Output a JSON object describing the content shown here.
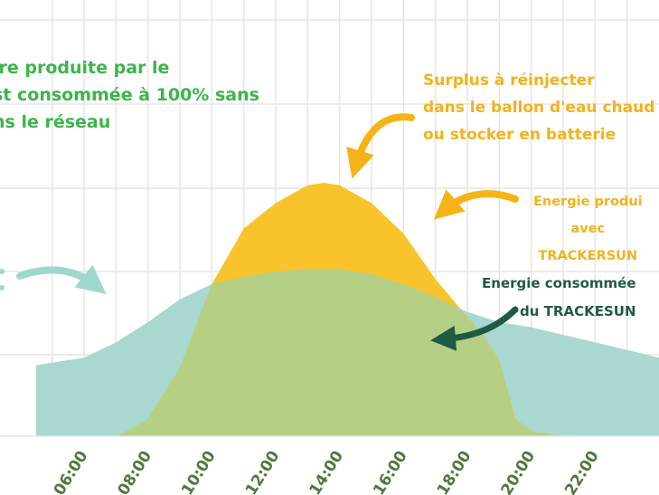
{
  "colors": {
    "produced_fill": "#f9c42b",
    "consumed_fill": "#a8d8cf",
    "overlap_fill": "#b5cf84",
    "grid": "#e6e6e6",
    "axis_label": "#4d7a3a",
    "annot_green": "#3bb54a",
    "annot_orange": "#f2b21c",
    "annot_dark": "#1f5a44",
    "arrow_orange": "#f5b316",
    "arrow_teal": "#9ed7cc",
    "arrow_dark": "#1f5a44"
  },
  "chart_data": {
    "type": "area",
    "x_unit": "hour",
    "x_range": [
      4.5,
      24.0
    ],
    "y_range": [
      0,
      1
    ],
    "grid": true,
    "tick_labels": [
      "06:00",
      "08:00",
      "10:00",
      "12:00",
      "14:00",
      "16:00",
      "18:00",
      "20:00",
      "22:00"
    ],
    "tick_values": [
      6,
      8,
      10,
      12,
      14,
      16,
      18,
      20,
      22
    ],
    "series": [
      {
        "key": "consumed",
        "x": [
          4.5,
          5.0,
          6.0,
          7.0,
          8.0,
          9.0,
          10.0,
          11.0,
          12.0,
          13.0,
          14.0,
          15.0,
          16.0,
          17.0,
          18.0,
          19.0,
          20.0,
          21.0,
          22.0,
          23.0,
          24.0
        ],
        "y": [
          0.28,
          0.29,
          0.31,
          0.37,
          0.45,
          0.54,
          0.6,
          0.63,
          0.65,
          0.66,
          0.66,
          0.64,
          0.6,
          0.55,
          0.49,
          0.45,
          0.43,
          0.4,
          0.37,
          0.34,
          0.31
        ]
      },
      {
        "key": "produced",
        "x": [
          7.0,
          7.5,
          8.0,
          9.0,
          10.0,
          11.0,
          12.0,
          13.0,
          13.5,
          14.0,
          15.0,
          16.0,
          17.0,
          18.0,
          18.5,
          19.0,
          19.5,
          20.0,
          21.0
        ],
        "y": [
          0.0,
          0.03,
          0.07,
          0.27,
          0.6,
          0.82,
          0.92,
          0.99,
          1.0,
          0.99,
          0.92,
          0.8,
          0.62,
          0.47,
          0.4,
          0.3,
          0.07,
          0.02,
          0.0
        ]
      }
    ]
  },
  "annotations": {
    "green": {
      "lines": [
        "ire produite par le",
        "st consommée à 100% sans",
        "ns le réseau"
      ]
    },
    "surplus": {
      "lines": [
        "Surplus à réinjecter",
        "dans le ballon d'eau chaud",
        "ou stocker en batterie"
      ]
    },
    "produced": {
      "lines": [
        "Energie produi",
        "avec",
        "TRACKERSUN"
      ]
    },
    "consumed": {
      "lines": [
        "Energie consommée",
        "du TRACKESUN"
      ]
    }
  },
  "icons": [
    "arrow-icon"
  ]
}
